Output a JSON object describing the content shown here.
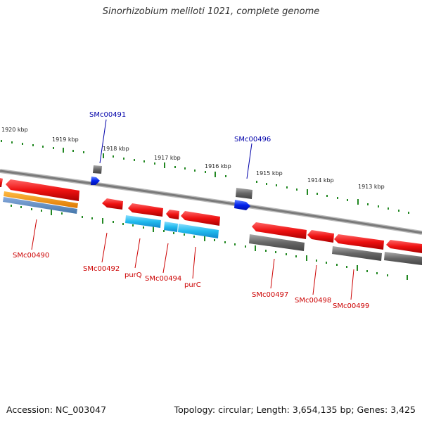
{
  "title": "Sinorhizobium meliloti 1021, complete genome",
  "footer": {
    "accession": "Accession: NC_003047",
    "topology": "Topology: circular; Length: 3,654,135 bp; Genes: 3,425"
  },
  "ruler": {
    "unit": "kbp",
    "ticks": [
      "1920 kbp",
      "1919 kbp",
      "1918 kbp",
      "1917 kbp",
      "1916 kbp",
      "1915 kbp",
      "1914 kbp",
      "1913 kbp"
    ]
  },
  "gene_labels": {
    "outer": [
      "SMc00491",
      "SMc00496"
    ],
    "inner": [
      "SMc00490",
      "SMc00492",
      "purQ",
      "SMc00494",
      "purC",
      "SMc00497",
      "SMc00498",
      "SMc00499"
    ]
  },
  "colors": {
    "cds": "#ee1111",
    "gene_grey": "#666666",
    "gene_blue": "#0022ee",
    "cyan": "#22bbee",
    "orange": "#ee8800",
    "steel": "#5588bb",
    "tick": "#228822",
    "backbone": "#888888",
    "label_red": "#cc0000",
    "label_blue": "#0000aa"
  }
}
